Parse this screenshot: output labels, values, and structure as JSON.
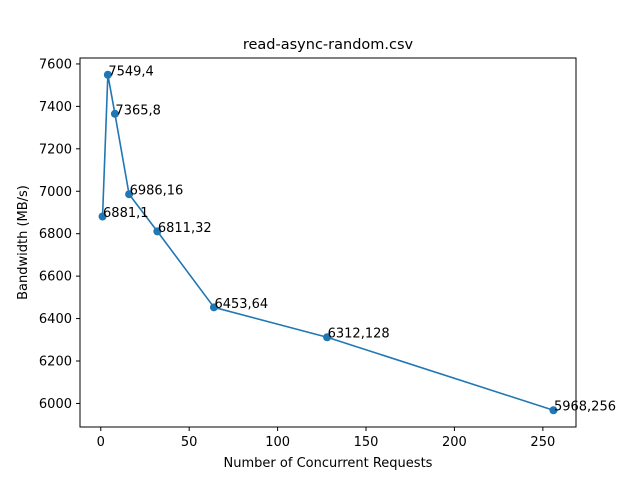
{
  "chart_data": {
    "type": "line",
    "title": "read-async-random.csv",
    "xlabel": "Number of Concurrent Requests",
    "ylabel": "Bandwidth (MB/s)",
    "x": [
      1,
      4,
      8,
      16,
      32,
      64,
      128,
      256
    ],
    "y": [
      6881,
      7549,
      7365,
      6986,
      6811,
      6453,
      6312,
      5968
    ],
    "point_labels": [
      "6881,1",
      "7549,4",
      "7365,8",
      "6986,16",
      "6811,32",
      "6453,64",
      "6312,128",
      "5968,256"
    ],
    "xlim": [
      -11.75,
      268.75
    ],
    "ylim": [
      5889,
      7628
    ],
    "xticks": [
      0,
      50,
      100,
      150,
      200,
      250
    ],
    "xtick_labels": [
      "0",
      "50",
      "100",
      "150",
      "200",
      "250"
    ],
    "yticks": [
      6000,
      6200,
      6400,
      6600,
      6800,
      7000,
      7200,
      7400,
      7600
    ],
    "ytick_labels": [
      "6000",
      "6200",
      "6400",
      "6600",
      "6800",
      "7000",
      "7200",
      "7400",
      "7600"
    ],
    "grid": false,
    "line_color": "#1f77b4",
    "marker": "circle"
  }
}
